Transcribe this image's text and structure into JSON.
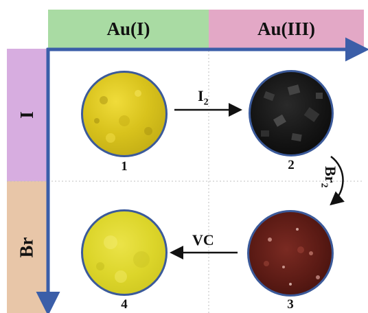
{
  "columns": [
    "Au(I)",
    "Au(III)"
  ],
  "rows": [
    "I",
    "Br"
  ],
  "samples": [
    {
      "id": "1",
      "color": "#d9c21a"
    },
    {
      "id": "2",
      "color": "#111111"
    },
    {
      "id": "3",
      "color": "#5a1a14"
    },
    {
      "id": "4",
      "color": "#dcd52a"
    }
  ],
  "transitions": [
    {
      "label": "I",
      "sub": "2"
    },
    {
      "label": "Br",
      "sub": "2"
    },
    {
      "label": "VC"
    }
  ],
  "colors": {
    "col_au1": "#a9dba3",
    "col_au3": "#e3a8c6",
    "row_i": "#d7ade0",
    "row_br": "#e8c6a8",
    "axis": "#3b5ea8"
  }
}
